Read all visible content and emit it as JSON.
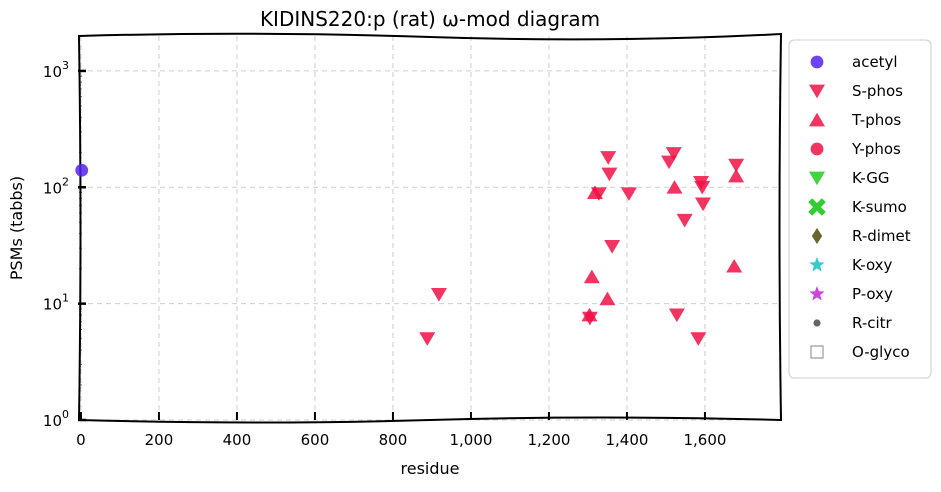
{
  "chart_data": {
    "type": "scatter",
    "title": "KIDINS220:p (rat) ω-mod diagram",
    "xlabel": "residue",
    "ylabel": "PSMs (tabbs)",
    "xlim": [
      -5,
      1795
    ],
    "ylim_log10": [
      0,
      3.3
    ],
    "y_scale": "log",
    "grid": true,
    "legend_position": "right-outside",
    "x_ticks": [
      {
        "value": 0,
        "label": "0"
      },
      {
        "value": 200,
        "label": "200"
      },
      {
        "value": 400,
        "label": "400"
      },
      {
        "value": 600,
        "label": "600"
      },
      {
        "value": 800,
        "label": "800"
      },
      {
        "value": 1000,
        "label": "1,000"
      },
      {
        "value": 1200,
        "label": "1,200"
      },
      {
        "value": 1400,
        "label": "1,400"
      },
      {
        "value": 1600,
        "label": "1,600"
      }
    ],
    "y_ticks": [
      {
        "value": 1,
        "base": "10",
        "exp": "0"
      },
      {
        "value": 10,
        "base": "10",
        "exp": "1"
      },
      {
        "value": 100,
        "base": "10",
        "exp": "2"
      },
      {
        "value": 1000,
        "base": "10",
        "exp": "3"
      }
    ],
    "series": [
      {
        "name": "acetyl",
        "marker": "circle",
        "color": "#5522ee",
        "points": [
          {
            "x": 2,
            "y": 140
          }
        ]
      },
      {
        "name": "S-phos",
        "marker": "triangle-down",
        "color": "#ee1144",
        "points": [
          {
            "x": 888,
            "y": 5
          },
          {
            "x": 918,
            "y": 12
          },
          {
            "x": 1305,
            "y": 7.5
          },
          {
            "x": 1328,
            "y": 88
          },
          {
            "x": 1352,
            "y": 180
          },
          {
            "x": 1355,
            "y": 130
          },
          {
            "x": 1362,
            "y": 31
          },
          {
            "x": 1405,
            "y": 88
          },
          {
            "x": 1508,
            "y": 165
          },
          {
            "x": 1520,
            "y": 195
          },
          {
            "x": 1528,
            "y": 8
          },
          {
            "x": 1548,
            "y": 52
          },
          {
            "x": 1583,
            "y": 5
          },
          {
            "x": 1590,
            "y": 110
          },
          {
            "x": 1593,
            "y": 100
          },
          {
            "x": 1595,
            "y": 72
          },
          {
            "x": 1680,
            "y": 155
          }
        ]
      },
      {
        "name": "T-phos",
        "marker": "triangle-up",
        "color": "#ee1144",
        "points": [
          {
            "x": 1304,
            "y": 8
          },
          {
            "x": 1310,
            "y": 17
          },
          {
            "x": 1318,
            "y": 90
          },
          {
            "x": 1350,
            "y": 11
          },
          {
            "x": 1522,
            "y": 100
          },
          {
            "x": 1675,
            "y": 21
          },
          {
            "x": 1680,
            "y": 125
          }
        ]
      },
      {
        "name": "Y-phos",
        "marker": "circle",
        "color": "#ee1144",
        "points": []
      },
      {
        "name": "K-GG",
        "marker": "triangle-down",
        "color": "#22cc22",
        "points": []
      },
      {
        "name": "K-sumo",
        "marker": "x",
        "color": "#33cc33",
        "points": []
      },
      {
        "name": "R-dimet",
        "marker": "diamond",
        "color": "#6b6630",
        "points": []
      },
      {
        "name": "K-oxy",
        "marker": "star",
        "color": "#33cccc",
        "points": []
      },
      {
        "name": "P-oxy",
        "marker": "star",
        "color": "#cc44dd",
        "points": []
      },
      {
        "name": "R-citr",
        "marker": "dot",
        "color": "#666666",
        "points": []
      },
      {
        "name": "O-glyco",
        "marker": "square-open",
        "color": "#999999",
        "points": []
      }
    ]
  }
}
